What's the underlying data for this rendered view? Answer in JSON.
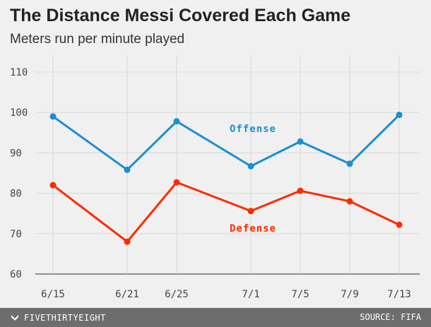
{
  "chart_data": {
    "type": "line",
    "title": "The Distance Messi Covered Each Game",
    "subtitle": "Meters run per minute played",
    "categories": [
      "6/15",
      "6/21",
      "6/25",
      "7/1",
      "7/5",
      "7/9",
      "7/13"
    ],
    "x_days": [
      0,
      6,
      10,
      16,
      20,
      24,
      28
    ],
    "ylim": [
      60,
      110
    ],
    "yticks": [
      60,
      70,
      80,
      90,
      100,
      110
    ],
    "series": [
      {
        "name": "Offense",
        "color": "#1a8fd1",
        "values": [
          99,
          85.8,
          97.8,
          86.7,
          92.8,
          87.3,
          99.4
        ]
      },
      {
        "name": "Defense",
        "color": "#ff2a00",
        "values": [
          82,
          68,
          82.7,
          75.6,
          80.6,
          78,
          72.2
        ]
      }
    ]
  },
  "footer": {
    "brand": "FIVETHIRTYEIGHT",
    "source": "SOURCE: FIFA",
    "brand_icon": "fivethirtyeight-logo-icon"
  }
}
